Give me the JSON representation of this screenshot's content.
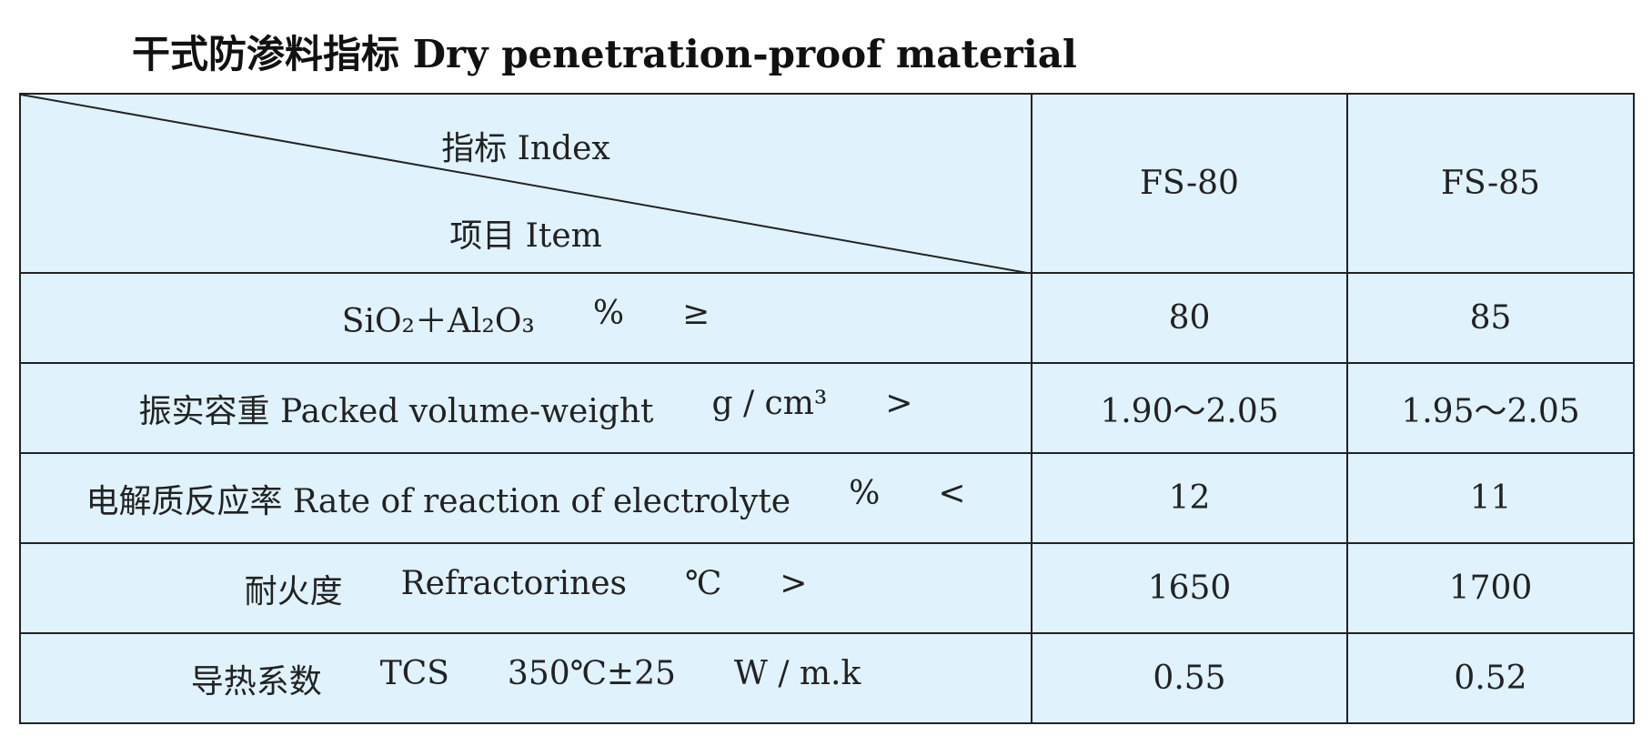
{
  "title": "干式防渗料指标 Dry penetration-proof material",
  "header": {
    "index": "指标 Index",
    "item": "项目 Item",
    "grades": [
      "FS-80",
      "FS-85"
    ]
  },
  "rows": [
    {
      "label": [
        "SiO₂＋Al₂O₃",
        "%",
        "≥"
      ],
      "values": [
        "80",
        "85"
      ]
    },
    {
      "label": [
        "振实容重 Packed volume-weight",
        "g / cm³",
        ">"
      ],
      "values": [
        "1.90～2.05",
        "1.95～2.05"
      ]
    },
    {
      "label": [
        "电解质反应率 Rate of reaction of electrolyte",
        "%",
        "<"
      ],
      "values": [
        "12",
        "11"
      ]
    },
    {
      "label": [
        "耐火度",
        "Refractorines",
        "℃",
        ">"
      ],
      "values": [
        "1650",
        "1700"
      ]
    },
    {
      "label": [
        "导热系数",
        "TCS",
        "350℃±25",
        "W / m.k"
      ],
      "values": [
        "0.55",
        "0.52"
      ]
    }
  ]
}
